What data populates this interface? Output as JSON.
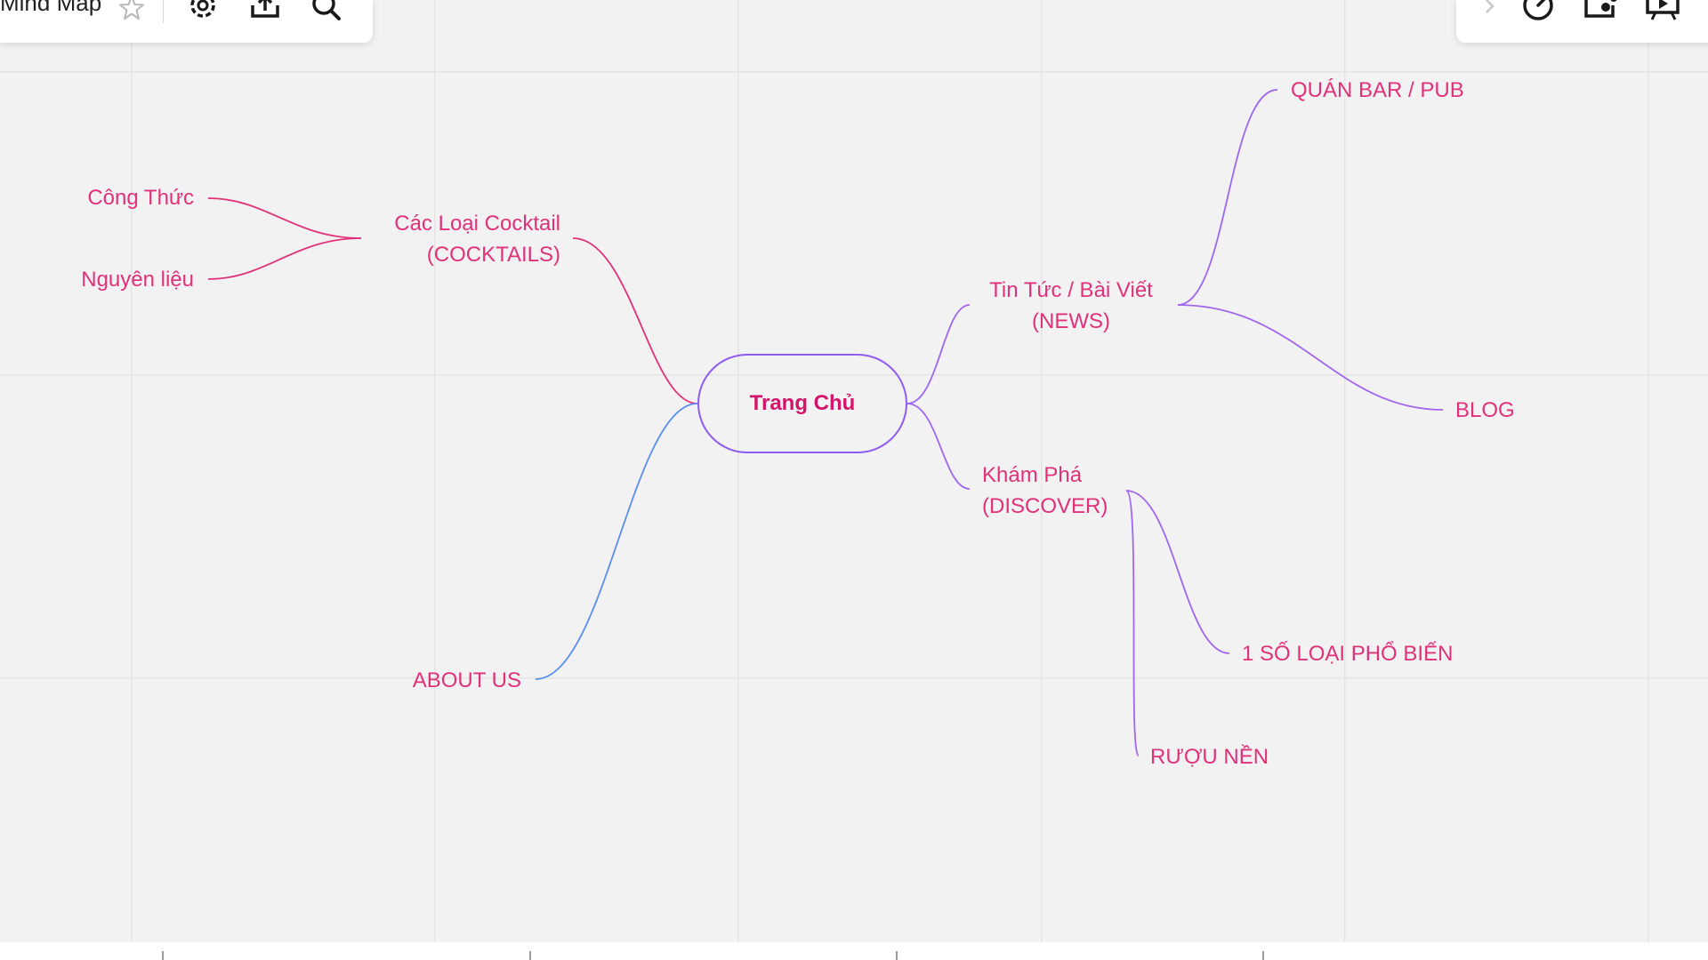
{
  "toolbar": {
    "board_title": "Mind Map",
    "icons": [
      "star-icon",
      "gear-icon",
      "upload-icon",
      "search-icon"
    ],
    "right_icons": [
      "chevron-right-icon",
      "timer-icon",
      "board-icon",
      "present-icon"
    ]
  },
  "mindmap": {
    "root": "Trang Chủ",
    "nodes": {
      "cong_thuc": "Công Thức",
      "nguyen_lieu": "Nguyên liệu",
      "cocktails_line1": "Các Loại Cocktail",
      "cocktails_line2": "(COCKTAILS)",
      "about": "ABOUT US",
      "news_line1": "Tin Tức / Bài Viết",
      "news_line2": "(NEWS)",
      "discover_line1": "Khám Phá",
      "discover_line2": "(DISCOVER)",
      "bar_pub": "QUÁN BAR / PUB",
      "blog": "BLOG",
      "pho_bien": "1 SỐ LOẠI PHỔ BIẾN",
      "ruou_nen": "RƯỢU NỀN"
    }
  },
  "colors": {
    "pink": "#e0317a",
    "purple": "#a066f0",
    "blue": "#5b8ef0",
    "root_border": "#8f5cf0"
  }
}
